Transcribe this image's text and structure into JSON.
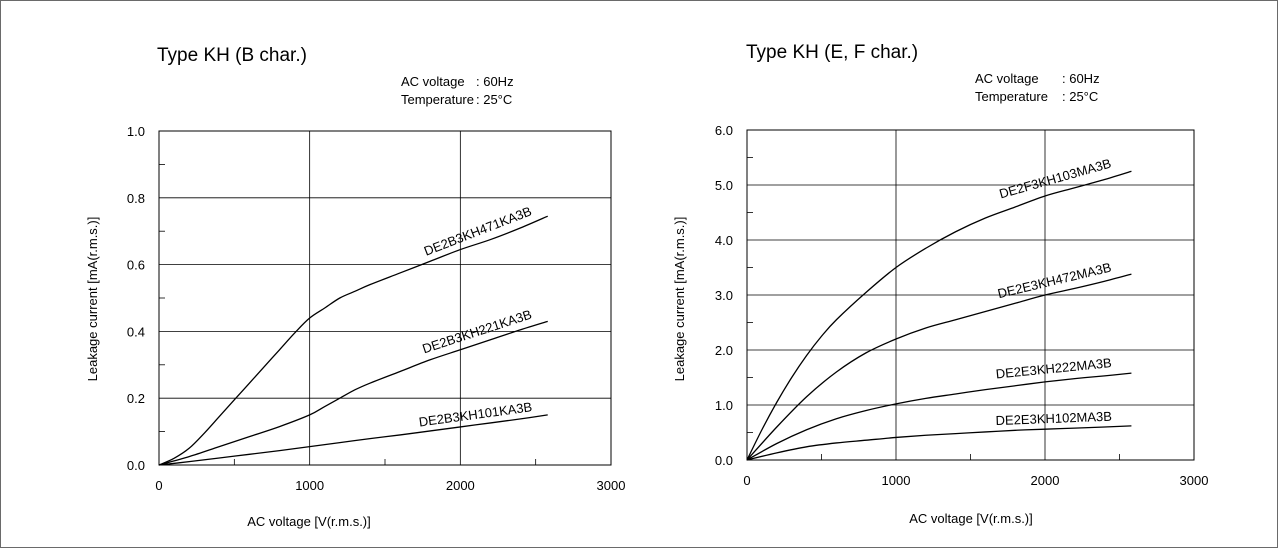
{
  "chart_data": [
    {
      "type": "line",
      "title": "Type KH (B char.)",
      "conditions": [
        {
          "label": "AC voltage",
          "value": ": 60Hz"
        },
        {
          "label": "Temperature",
          "value": ": 25°C"
        }
      ],
      "xlabel": "AC voltage [V(r.m.s.)]",
      "ylabel": "Leakage current [mA(r.m.s.)]",
      "xlim": [
        0,
        3000
      ],
      "ylim": [
        0,
        1.0
      ],
      "xticks": [
        0,
        1000,
        2000,
        3000
      ],
      "xtick_labels": [
        "0",
        "1000",
        "2000",
        "3000"
      ],
      "yticks": [
        0,
        0.2,
        0.4,
        0.6,
        0.8,
        1.0
      ],
      "ytick_labels": [
        "0.0",
        "0.2",
        "0.4",
        "0.6",
        "0.8",
        "1.0"
      ],
      "grid": true,
      "series": [
        {
          "name": "DE2B3KH471KA3B",
          "x": [
            0,
            100,
            200,
            300,
            400,
            500,
            600,
            700,
            800,
            900,
            1000,
            1100,
            1200,
            1300,
            1400,
            1600,
            1800,
            2000,
            2200,
            2400,
            2580
          ],
          "y": [
            0,
            0.02,
            0.05,
            0.095,
            0.145,
            0.195,
            0.245,
            0.295,
            0.345,
            0.395,
            0.44,
            0.47,
            0.5,
            0.52,
            0.54,
            0.575,
            0.61,
            0.645,
            0.675,
            0.71,
            0.745
          ]
        },
        {
          "name": "DE2B3KH221KA3B",
          "x": [
            0,
            200,
            400,
            600,
            800,
            1000,
            1100,
            1200,
            1300,
            1400,
            1600,
            1800,
            2000,
            2200,
            2400,
            2580
          ],
          "y": [
            0,
            0.025,
            0.055,
            0.085,
            0.115,
            0.15,
            0.175,
            0.2,
            0.225,
            0.245,
            0.28,
            0.315,
            0.345,
            0.375,
            0.405,
            0.43
          ]
        },
        {
          "name": "DE2B3KH101KA3B",
          "x": [
            0,
            200,
            400,
            600,
            800,
            1000,
            1200,
            1400,
            1600,
            1800,
            2000,
            2200,
            2400,
            2580
          ],
          "y": [
            0,
            0.01,
            0.021,
            0.032,
            0.043,
            0.055,
            0.067,
            0.079,
            0.09,
            0.102,
            0.114,
            0.126,
            0.138,
            0.15
          ]
        }
      ]
    },
    {
      "type": "line",
      "title": "Type KH (E, F char.)",
      "conditions": [
        {
          "label": "AC voltage",
          "value": ": 60Hz"
        },
        {
          "label": "Temperature",
          "value": ": 25°C"
        }
      ],
      "xlabel": "AC voltage [V(r.m.s.)]",
      "ylabel": "Leakage current [mA(r.m.s.)]",
      "xlim": [
        0,
        3000
      ],
      "ylim": [
        0,
        6.0
      ],
      "xticks": [
        0,
        1000,
        2000,
        3000
      ],
      "xtick_labels": [
        "0",
        "1000",
        "2000",
        "3000"
      ],
      "yticks": [
        0,
        1,
        2,
        3,
        4,
        5,
        6
      ],
      "ytick_labels": [
        "0.0",
        "1.0",
        "2.0",
        "3.0",
        "4.0",
        "5.0",
        "6.0"
      ],
      "grid": true,
      "series": [
        {
          "name": "DE2F3KH103MA3B",
          "x": [
            0,
            100,
            200,
            300,
            400,
            500,
            600,
            800,
            1000,
            1200,
            1400,
            1600,
            1800,
            2000,
            2200,
            2400,
            2580
          ],
          "y": [
            0,
            0.55,
            1.05,
            1.5,
            1.9,
            2.25,
            2.55,
            3.05,
            3.5,
            3.85,
            4.15,
            4.4,
            4.6,
            4.8,
            4.95,
            5.1,
            5.25
          ]
        },
        {
          "name": "DE2E3KH472MA3B",
          "x": [
            0,
            200,
            400,
            600,
            800,
            1000,
            1200,
            1400,
            1600,
            1800,
            2000,
            2200,
            2400,
            2580
          ],
          "y": [
            0,
            0.6,
            1.15,
            1.6,
            1.95,
            2.2,
            2.4,
            2.55,
            2.7,
            2.85,
            3.0,
            3.12,
            3.25,
            3.38
          ]
        },
        {
          "name": "DE2E3KH222MA3B",
          "x": [
            0,
            200,
            400,
            600,
            800,
            1000,
            1200,
            1400,
            1600,
            1800,
            2000,
            2200,
            2400,
            2580
          ],
          "y": [
            0,
            0.3,
            0.55,
            0.75,
            0.9,
            1.02,
            1.12,
            1.2,
            1.28,
            1.35,
            1.42,
            1.48,
            1.53,
            1.58
          ]
        },
        {
          "name": "DE2E3KH102MA3B",
          "x": [
            0,
            200,
            400,
            600,
            800,
            1000,
            1200,
            1400,
            1600,
            1800,
            2000,
            2200,
            2400,
            2580
          ],
          "y": [
            0,
            0.13,
            0.24,
            0.31,
            0.36,
            0.41,
            0.45,
            0.48,
            0.51,
            0.54,
            0.56,
            0.58,
            0.6,
            0.62
          ]
        }
      ]
    }
  ]
}
